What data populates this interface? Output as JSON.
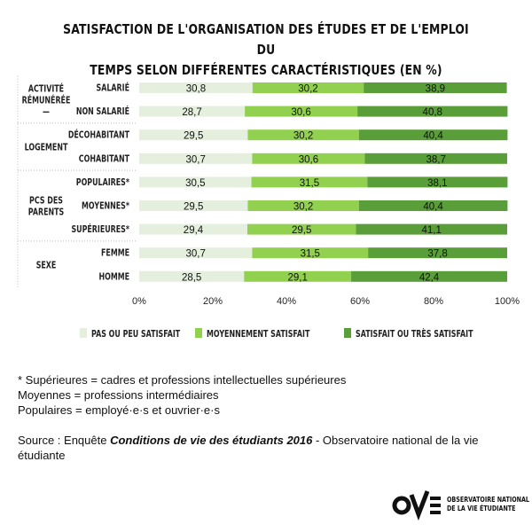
{
  "title_lines": [
    "Satisfaction de l'organisation des études et de l'emploi du",
    "temps selon différentes caractéristiques (en %)"
  ],
  "chart_data": {
    "type": "bar",
    "orientation": "horizontal",
    "stacked": true,
    "groups": [
      {
        "label_lines": [
          "Activité",
          "rémunérée",
          "—"
        ],
        "categories": [
          "Salarié",
          "Non salarié"
        ]
      },
      {
        "label_lines": [
          "Logement"
        ],
        "categories": [
          "Décohabitant",
          "Cohabitant"
        ]
      },
      {
        "label_lines": [
          "PCS des",
          "parents"
        ],
        "categories": [
          "Populaires*",
          "Moyennes*",
          "Supérieures*"
        ]
      },
      {
        "label_lines": [
          "Sexe"
        ],
        "categories": [
          "Femme",
          "Homme"
        ]
      }
    ],
    "categories": [
      "Salarié",
      "Non salarié",
      "Décohabitant",
      "Cohabitant",
      "Populaires*",
      "Moyennes*",
      "Supérieures*",
      "Femme",
      "Homme"
    ],
    "series": [
      {
        "name": "Pas ou peu satisfait",
        "color": "#e4efde",
        "values": [
          30.8,
          28.7,
          29.5,
          30.7,
          30.5,
          29.5,
          29.4,
          30.7,
          28.5
        ],
        "labels": [
          "30,8",
          "28,7",
          "29,5",
          "30,7",
          "30,5",
          "29,5",
          "29,4",
          "30,7",
          "28,5"
        ]
      },
      {
        "name": "Moyennement satisfait",
        "color": "#92d050",
        "values": [
          30.2,
          30.6,
          30.2,
          30.6,
          31.5,
          30.2,
          29.5,
          31.5,
          29.1
        ],
        "labels": [
          "30,2",
          "30,6",
          "30,2",
          "30,6",
          "31,5",
          "30,2",
          "29,5",
          "31,5",
          "29,1"
        ]
      },
      {
        "name": "Satisfait ou très satisfait",
        "color": "#5a9e3a",
        "values": [
          38.9,
          40.8,
          40.4,
          38.7,
          38.1,
          40.4,
          41.1,
          37.8,
          42.4
        ],
        "labels": [
          "38,9",
          "40,8",
          "40,4",
          "38,7",
          "38,1",
          "40,4",
          "41,1",
          "37,8",
          "42,4"
        ]
      }
    ],
    "xlim": [
      0,
      100
    ],
    "xticks": [
      "0%",
      "20%",
      "40%",
      "60%",
      "80%",
      "100%"
    ],
    "grid": false,
    "legend_position": "bottom"
  },
  "notes": [
    "* Supérieures = cadres et professions intellectuelles supérieures",
    "Moyennes = professions intermédiaires",
    "Populaires = employé·e·s et ouvrier·e·s"
  ],
  "source": {
    "prefix": "Source : Enquête ",
    "title": "Conditions de vie des étudiants 2016",
    "suffix": " - Observatoire national de la vie étudiante"
  },
  "logo": {
    "line1": "Observatoire national",
    "line2": "de la vie étudiante"
  }
}
